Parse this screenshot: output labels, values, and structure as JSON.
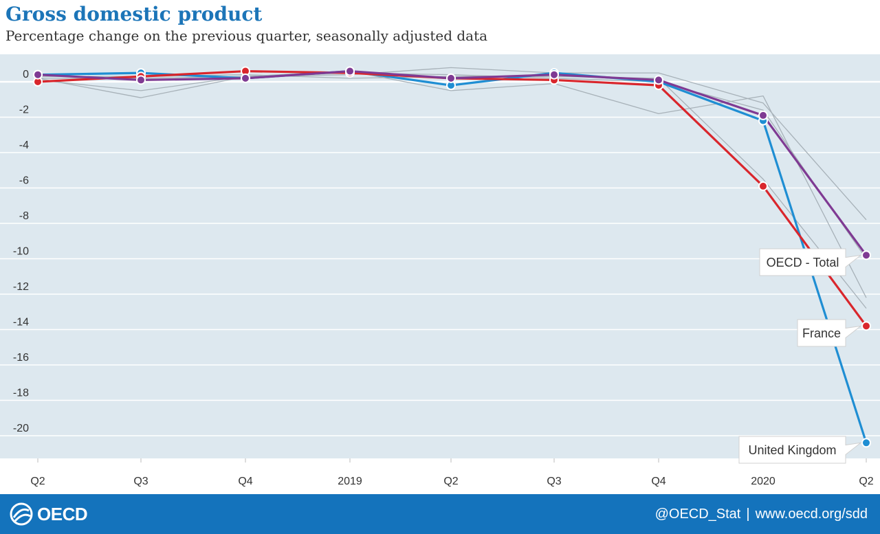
{
  "header": {
    "title": "Gross domestic product",
    "subtitle": "Percentage change on the previous quarter, seasonally adjusted data"
  },
  "footer": {
    "logo_text": "OECD",
    "handle": "@OECD_Stat",
    "separator": "|",
    "website": "www.oecd.org/sdd"
  },
  "colors": {
    "accent": "#1c75b8",
    "footer_bg": "#1473bc",
    "plot_bg": "#dde8ef",
    "uk": "#1f8ed3",
    "france": "#d9262c",
    "oecd": "#7f3a93",
    "other": "#a7b1b8"
  },
  "chart_data": {
    "type": "line",
    "title": "Gross domestic product",
    "subtitle": "Percentage change on the previous quarter, seasonally adjusted data",
    "categories": [
      "Q2",
      "Q3",
      "Q4",
      "2019",
      "Q2",
      "Q3",
      "Q4",
      "2020",
      "Q2"
    ],
    "ylim": [
      -21,
      1
    ],
    "yticks": [
      0,
      -2,
      -4,
      -6,
      -8,
      -10,
      -12,
      -14,
      -16,
      -18,
      -20
    ],
    "grid": true,
    "series": [
      {
        "name": "United Kingdom",
        "color": "#1f8ed3",
        "highlight": true,
        "values": [
          0.4,
          0.5,
          0.2,
          0.6,
          -0.2,
          0.5,
          0.0,
          -2.2,
          -20.4
        ]
      },
      {
        "name": "France",
        "color": "#d9262c",
        "highlight": true,
        "values": [
          0.0,
          0.3,
          0.6,
          0.5,
          0.2,
          0.1,
          -0.2,
          -5.9,
          -13.8
        ]
      },
      {
        "name": "OECD - Total",
        "color": "#7f3a93",
        "highlight": true,
        "values": [
          0.4,
          0.1,
          0.2,
          0.6,
          0.2,
          0.4,
          0.1,
          -1.9,
          -9.8
        ]
      },
      {
        "name": "",
        "color": "#a7b1b8",
        "highlight": false,
        "values": [
          0.2,
          -0.9,
          0.3,
          0.4,
          0.8,
          0.5,
          0.5,
          -1.2,
          -7.8
        ]
      },
      {
        "name": "",
        "color": "#a7b1b8",
        "highlight": false,
        "values": [
          0.1,
          -0.5,
          0.3,
          0.6,
          -0.5,
          -0.1,
          -1.8,
          -0.8,
          -12.2
        ]
      },
      {
        "name": "",
        "color": "#a7b1b8",
        "highlight": false,
        "values": [
          0.3,
          0.3,
          0.4,
          0.2,
          0.3,
          0.3,
          0.2,
          -5.5,
          -12.8
        ]
      },
      {
        "name": "",
        "color": "#a7b1b8",
        "highlight": false,
        "values": [
          0.2,
          0.2,
          0.3,
          0.5,
          0.4,
          0.2,
          0.0,
          -1.6,
          -10.0
        ]
      }
    ],
    "labels": [
      {
        "text": "OECD - Total",
        "series": "OECD - Total"
      },
      {
        "text": "France",
        "series": "France"
      },
      {
        "text": "United Kingdom",
        "series": "United Kingdom"
      }
    ]
  }
}
